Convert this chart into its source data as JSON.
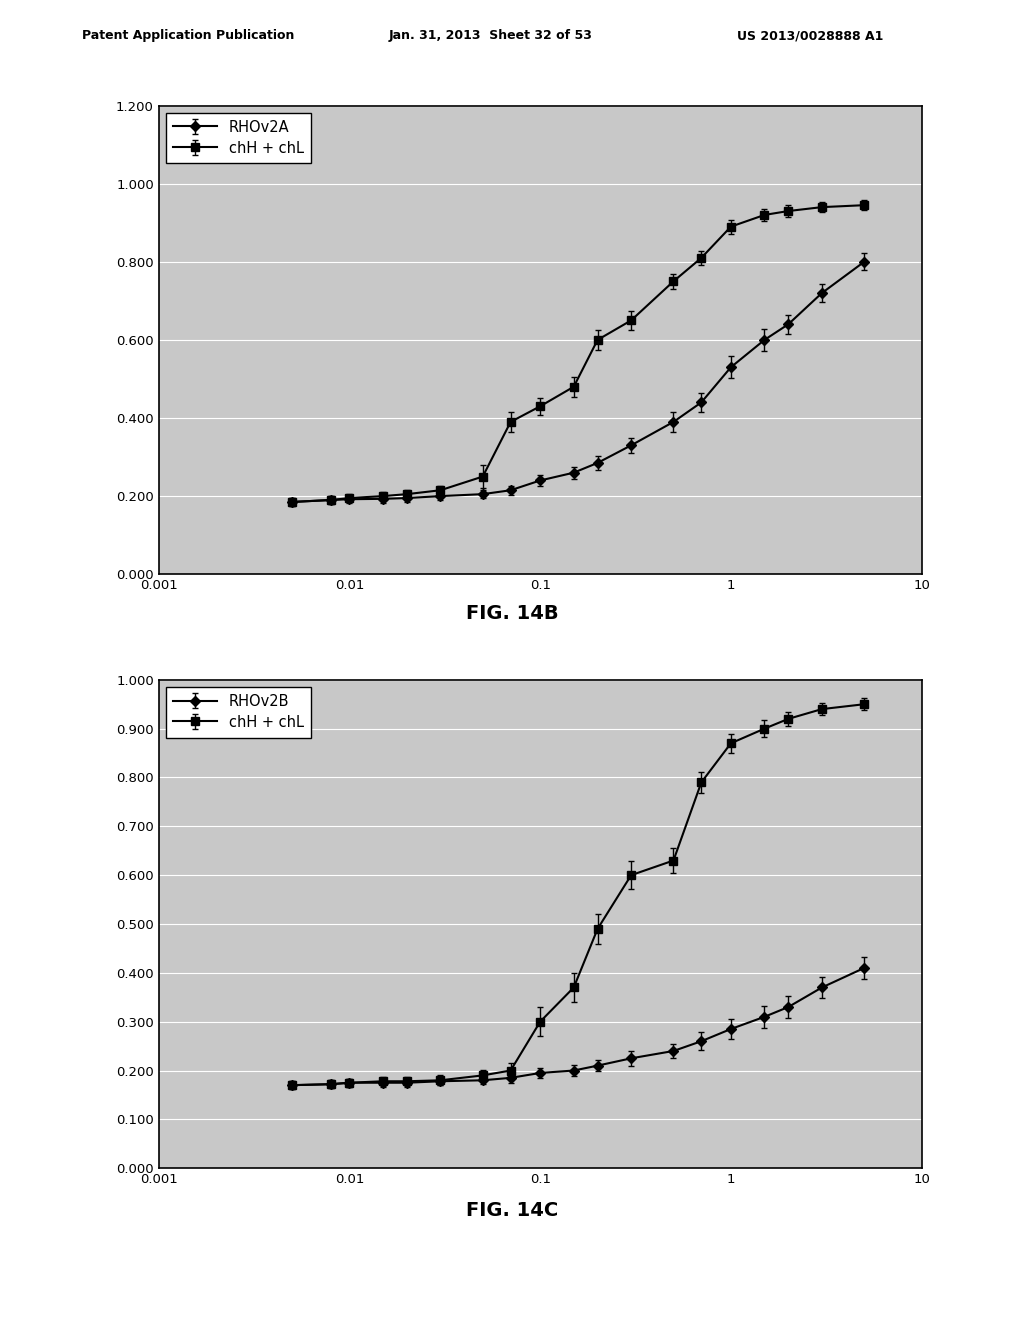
{
  "fig14b": {
    "title": "FIG. 14B",
    "legend1": "RHOv2A",
    "legend2": "chH + chL",
    "ylim": [
      0.0,
      1.2
    ],
    "yticks": [
      0.0,
      0.2,
      0.4,
      0.6,
      0.8,
      1.0,
      1.2
    ],
    "ytick_labels": [
      "0.000",
      "0.200",
      "0.400",
      "0.600",
      "0.800",
      "1.000",
      "1.200"
    ],
    "xlim": [
      0.001,
      10
    ],
    "xticks": [
      0.001,
      0.01,
      0.1,
      1,
      10
    ],
    "xtick_labels": [
      "0.001",
      "0.01",
      "0.1",
      "1",
      "10"
    ],
    "series1_x": [
      0.005,
      0.008,
      0.01,
      0.015,
      0.02,
      0.03,
      0.05,
      0.07,
      0.1,
      0.15,
      0.2,
      0.3,
      0.5,
      0.7,
      1.0,
      1.5,
      2.0,
      3.0,
      5.0
    ],
    "series1_y": [
      0.185,
      0.19,
      0.192,
      0.193,
      0.195,
      0.2,
      0.205,
      0.215,
      0.24,
      0.26,
      0.285,
      0.33,
      0.39,
      0.44,
      0.53,
      0.6,
      0.64,
      0.72,
      0.8
    ],
    "series1_err": [
      0.01,
      0.01,
      0.01,
      0.01,
      0.01,
      0.01,
      0.01,
      0.012,
      0.015,
      0.015,
      0.018,
      0.02,
      0.025,
      0.025,
      0.028,
      0.028,
      0.025,
      0.022,
      0.022
    ],
    "series2_x": [
      0.005,
      0.008,
      0.01,
      0.015,
      0.02,
      0.03,
      0.05,
      0.07,
      0.1,
      0.15,
      0.2,
      0.3,
      0.5,
      0.7,
      1.0,
      1.5,
      2.0,
      3.0,
      5.0
    ],
    "series2_y": [
      0.185,
      0.19,
      0.195,
      0.2,
      0.205,
      0.215,
      0.25,
      0.39,
      0.43,
      0.48,
      0.6,
      0.65,
      0.75,
      0.81,
      0.89,
      0.92,
      0.93,
      0.94,
      0.945
    ],
    "series2_err": [
      0.01,
      0.01,
      0.01,
      0.01,
      0.01,
      0.012,
      0.03,
      0.025,
      0.022,
      0.025,
      0.025,
      0.025,
      0.02,
      0.018,
      0.018,
      0.015,
      0.015,
      0.012,
      0.012
    ]
  },
  "fig14c": {
    "title": "FIG. 14C",
    "legend1": "RHOv2B",
    "legend2": "chH + chL",
    "ylim": [
      0.0,
      1.0
    ],
    "yticks": [
      0.0,
      0.1,
      0.2,
      0.3,
      0.4,
      0.5,
      0.6,
      0.7,
      0.8,
      0.9,
      1.0
    ],
    "ytick_labels": [
      "0.000",
      "0.100",
      "0.200",
      "0.300",
      "0.400",
      "0.500",
      "0.600",
      "0.700",
      "0.800",
      "0.900",
      "1.000"
    ],
    "xlim": [
      0.001,
      10
    ],
    "xticks": [
      0.001,
      0.01,
      0.1,
      1,
      10
    ],
    "xtick_labels": [
      "0.001",
      "0.01",
      "0.1",
      "1",
      "10"
    ],
    "series1_x": [
      0.005,
      0.008,
      0.01,
      0.015,
      0.02,
      0.03,
      0.05,
      0.07,
      0.1,
      0.15,
      0.2,
      0.3,
      0.5,
      0.7,
      1.0,
      1.5,
      2.0,
      3.0,
      5.0
    ],
    "series1_y": [
      0.17,
      0.172,
      0.175,
      0.175,
      0.175,
      0.178,
      0.18,
      0.185,
      0.195,
      0.2,
      0.21,
      0.225,
      0.24,
      0.26,
      0.285,
      0.31,
      0.33,
      0.37,
      0.41
    ],
    "series1_err": [
      0.008,
      0.008,
      0.008,
      0.008,
      0.008,
      0.008,
      0.008,
      0.01,
      0.01,
      0.012,
      0.012,
      0.015,
      0.015,
      0.018,
      0.02,
      0.022,
      0.022,
      0.022,
      0.022
    ],
    "series2_x": [
      0.005,
      0.008,
      0.01,
      0.015,
      0.02,
      0.03,
      0.05,
      0.07,
      0.1,
      0.15,
      0.2,
      0.3,
      0.5,
      0.7,
      1.0,
      1.5,
      2.0,
      3.0,
      5.0
    ],
    "series2_y": [
      0.17,
      0.172,
      0.175,
      0.178,
      0.178,
      0.18,
      0.19,
      0.2,
      0.3,
      0.37,
      0.49,
      0.6,
      0.63,
      0.79,
      0.87,
      0.9,
      0.92,
      0.94,
      0.95
    ],
    "series2_err": [
      0.008,
      0.008,
      0.008,
      0.008,
      0.008,
      0.01,
      0.012,
      0.015,
      0.03,
      0.03,
      0.03,
      0.028,
      0.025,
      0.022,
      0.02,
      0.018,
      0.015,
      0.012,
      0.012
    ]
  },
  "header_left": "Patent Application Publication",
  "header_center": "Jan. 31, 2013  Sheet 32 of 53",
  "header_right": "US 2013/0028888 A1",
  "line_color": "#000000",
  "background_color": "#ffffff",
  "plot_bg": "#c8c8c8"
}
